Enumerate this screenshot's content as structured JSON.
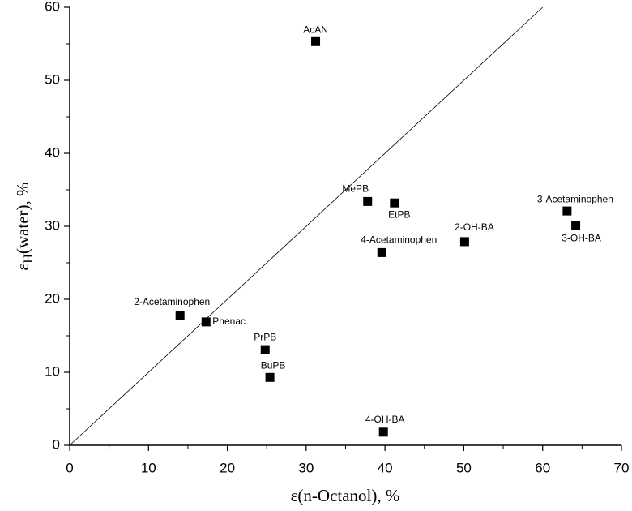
{
  "chart_data": {
    "type": "scatter",
    "x_label": "ε(n-Octanol), %",
    "y_label": {
      "symbol": "ε",
      "subscript": "H",
      "rest": "(water), %"
    },
    "points": [
      {
        "label": "AcAN",
        "x": 31.2,
        "y": 55.3
      },
      {
        "label": "MePB",
        "x": 37.8,
        "y": 33.4
      },
      {
        "label": "EtPB",
        "x": 41.2,
        "y": 33.2
      },
      {
        "label": "4-Acetaminophen",
        "x": 39.6,
        "y": 26.4
      },
      {
        "label": "2-OH-BA",
        "x": 50.1,
        "y": 27.9
      },
      {
        "label": "3-Acetaminophen",
        "x": 63.1,
        "y": 32.1
      },
      {
        "label": "3-OH-BA",
        "x": 64.2,
        "y": 30.1
      },
      {
        "label": "2-Acetaminophen",
        "x": 14.0,
        "y": 17.8
      },
      {
        "label": "Phenac",
        "x": 17.3,
        "y": 16.9
      },
      {
        "label": "PrPB",
        "x": 24.8,
        "y": 13.1
      },
      {
        "label": "BuPB",
        "x": 25.4,
        "y": 9.3
      },
      {
        "label": "4-OH-BA",
        "x": 39.8,
        "y": 1.8
      }
    ],
    "color": "#000000",
    "reference_line": {
      "x": [
        0,
        60
      ],
      "y": [
        0,
        60
      ]
    },
    "xlim": [
      0,
      70
    ],
    "xticks": [
      0,
      10,
      20,
      30,
      40,
      50,
      60,
      70
    ],
    "ylim": [
      0,
      60
    ],
    "yticks": [
      0,
      10,
      20,
      30,
      40,
      50,
      60
    ],
    "grid": false
  }
}
